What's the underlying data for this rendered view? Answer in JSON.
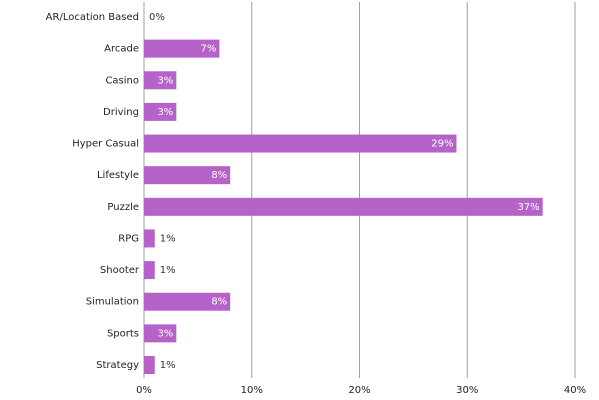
{
  "chart_data": {
    "type": "bar",
    "orientation": "horizontal",
    "categories": [
      "AR/Location Based",
      "Arcade",
      "Casino",
      "Driving",
      "Hyper Casual",
      "Lifestyle",
      "Puzzle",
      "RPG",
      "Shooter",
      "Simulation",
      "Sports",
      "Strategy"
    ],
    "values": [
      0,
      7,
      3,
      3,
      29,
      8,
      37,
      1,
      1,
      8,
      3,
      1
    ],
    "value_labels": [
      "0%",
      "7%",
      "3%",
      "3%",
      "29%",
      "8%",
      "37%",
      "1%",
      "1%",
      "8%",
      "3%",
      "1%"
    ],
    "color": "#b663c9",
    "xlim": [
      0,
      40
    ],
    "xticks": [
      {
        "value": 0,
        "label": "0%"
      },
      {
        "value": 10,
        "label": "10%"
      },
      {
        "value": 20,
        "label": "20%"
      },
      {
        "value": 30,
        "label": "30%"
      },
      {
        "value": 40,
        "label": "40%"
      }
    ],
    "grid": true
  }
}
